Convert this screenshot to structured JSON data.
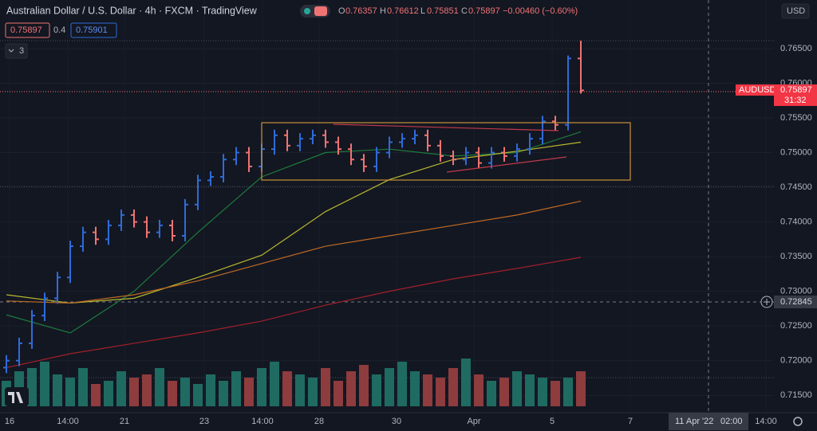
{
  "header": {
    "symbol": "Australian Dollar / U.S. Dollar · 4h · FXCM · TradingView",
    "o_key": "O",
    "o": "0.76357",
    "h_key": "H",
    "h": "0.76612",
    "l_key": "L",
    "l": "0.75851",
    "c_key": "C",
    "c": "0.75897",
    "change": "−0.00460 (−0.60%)"
  },
  "toolbar": {
    "bid": "0.75897",
    "spread": "0.4",
    "ask": "0.75901",
    "indicators": "3",
    "currency": "USD"
  },
  "price_label": {
    "symbol": "AUDUSD",
    "price": "0.75897",
    "countdown": "31:32"
  },
  "crosshair": {
    "price": "0.72845",
    "time": "11 Apr '22",
    "clock": "02:00"
  },
  "chart_data": {
    "type": "ohlc",
    "up_color": "#2f6bd8",
    "down_color": "#f07373",
    "volume_up_color": "#1f6b62",
    "volume_down_color": "#8e3c3e",
    "ylim": [
      0.7125,
      0.772
    ],
    "yticks": [
      {
        "value": 0.715,
        "label": "0.71500"
      },
      {
        "value": 0.72,
        "label": "0.72000"
      },
      {
        "value": 0.725,
        "label": "0.72500"
      },
      {
        "value": 0.73,
        "label": "0.73000"
      },
      {
        "value": 0.735,
        "label": "0.73500"
      },
      {
        "value": 0.74,
        "label": "0.74000"
      },
      {
        "value": 0.745,
        "label": "0.74500"
      },
      {
        "value": 0.75,
        "label": "0.75000"
      },
      {
        "value": 0.755,
        "label": "0.75500"
      },
      {
        "value": 0.76,
        "label": "0.76000"
      },
      {
        "value": 0.765,
        "label": "0.76500"
      }
    ],
    "x_labels": [
      "16",
      "14:00",
      "21",
      "23",
      "14:00",
      "28",
      "30",
      "Apr",
      "5",
      "7",
      "14:00"
    ],
    "open": [
      0.719,
      0.72,
      0.7225,
      0.7265,
      0.729,
      0.732,
      0.7365,
      0.7385,
      0.7375,
      0.7395,
      0.741,
      0.74,
      0.7385,
      0.7395,
      0.738,
      0.7425,
      0.746,
      0.7465,
      0.749,
      0.75,
      0.748,
      0.7505,
      0.7525,
      0.751,
      0.752,
      0.7525,
      0.7515,
      0.7505,
      0.749,
      0.748,
      0.75,
      0.7515,
      0.752,
      0.7525,
      0.751,
      0.7495,
      0.749,
      0.75,
      0.7485,
      0.75,
      0.7495,
      0.7505,
      0.752,
      0.7545,
      0.754,
      0.76357
    ],
    "high": [
      0.7208,
      0.7233,
      0.7273,
      0.7298,
      0.7328,
      0.7373,
      0.7393,
      0.7393,
      0.7403,
      0.7418,
      0.7418,
      0.7408,
      0.7403,
      0.7403,
      0.7433,
      0.7468,
      0.7473,
      0.7498,
      0.7508,
      0.7508,
      0.7513,
      0.7533,
      0.7533,
      0.7528,
      0.7533,
      0.7533,
      0.7523,
      0.7513,
      0.7498,
      0.7508,
      0.7523,
      0.7528,
      0.7533,
      0.7533,
      0.7518,
      0.7503,
      0.7508,
      0.7508,
      0.7508,
      0.7508,
      0.7513,
      0.7528,
      0.7553,
      0.7553,
      0.764,
      0.76612
    ],
    "low": [
      0.7182,
      0.7192,
      0.7217,
      0.7257,
      0.7282,
      0.7312,
      0.7357,
      0.7367,
      0.7367,
      0.7387,
      0.7392,
      0.7377,
      0.7377,
      0.7372,
      0.7372,
      0.7417,
      0.7452,
      0.7457,
      0.7482,
      0.7472,
      0.7472,
      0.7497,
      0.7502,
      0.7502,
      0.7512,
      0.7507,
      0.7497,
      0.7482,
      0.7472,
      0.7472,
      0.7492,
      0.7507,
      0.7512,
      0.7502,
      0.7487,
      0.7482,
      0.7482,
      0.7477,
      0.7477,
      0.7487,
      0.7487,
      0.7497,
      0.7512,
      0.7532,
      0.7532,
      0.75851
    ],
    "close": [
      0.72,
      0.7225,
      0.7265,
      0.729,
      0.732,
      0.7365,
      0.7385,
      0.7375,
      0.7395,
      0.741,
      0.74,
      0.7385,
      0.7395,
      0.738,
      0.7425,
      0.746,
      0.7465,
      0.749,
      0.75,
      0.748,
      0.7505,
      0.7525,
      0.751,
      0.752,
      0.7525,
      0.7515,
      0.7505,
      0.749,
      0.748,
      0.75,
      0.7515,
      0.752,
      0.7525,
      0.751,
      0.7495,
      0.749,
      0.75,
      0.7485,
      0.75,
      0.7495,
      0.7505,
      0.752,
      0.7545,
      0.754,
      0.76357,
      0.75897
    ],
    "volume": [
      40,
      55,
      60,
      70,
      50,
      45,
      60,
      35,
      40,
      55,
      45,
      50,
      60,
      40,
      45,
      35,
      50,
      40,
      55,
      45,
      60,
      70,
      55,
      50,
      45,
      60,
      40,
      55,
      65,
      50,
      60,
      70,
      55,
      50,
      45,
      60,
      75,
      50,
      40,
      45,
      55,
      50,
      45,
      40,
      45,
      55
    ],
    "volume_max": 100,
    "lines": [
      {
        "color": "#1e7a3c",
        "x": [
          0,
          5,
          10,
          15,
          20,
          25,
          30,
          35,
          40,
          45
        ],
        "values": [
          0.7266,
          0.724,
          0.73,
          0.7385,
          0.7465,
          0.75,
          0.7505,
          0.7495,
          0.75,
          0.753
        ]
      },
      {
        "color": "#b8b82e",
        "x": [
          0,
          5,
          10,
          15,
          20,
          25,
          30,
          35,
          40,
          45
        ],
        "values": [
          0.7295,
          0.7283,
          0.729,
          0.732,
          0.7352,
          0.7415,
          0.7461,
          0.749,
          0.7502,
          0.7515
        ]
      },
      {
        "color": "#c06a24",
        "x": [
          0,
          5,
          10,
          15,
          20,
          25,
          30,
          35,
          40,
          45
        ],
        "values": [
          0.7286,
          0.7283,
          0.7295,
          0.7315,
          0.734,
          0.7365,
          0.738,
          0.7395,
          0.741,
          0.743
        ]
      },
      {
        "color": "#a3202a",
        "x": [
          0,
          5,
          10,
          15,
          20,
          25,
          30,
          35,
          40,
          45
        ],
        "values": [
          0.719,
          0.721,
          0.7225,
          0.724,
          0.7257,
          0.728,
          0.73,
          0.7318,
          0.7333,
          0.7349
        ]
      }
    ]
  }
}
